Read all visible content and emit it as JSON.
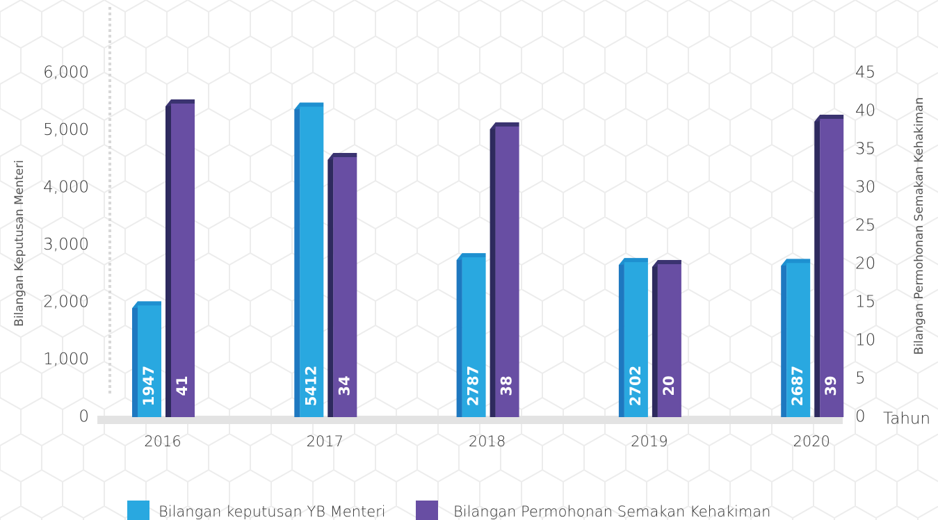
{
  "chart_data": {
    "type": "bar",
    "categories": [
      "2016",
      "2017",
      "2018",
      "2019",
      "2020"
    ],
    "series": [
      {
        "name": "Bilangan keputusan YB Menteri",
        "color": "#29a8e0",
        "values": [
          1947,
          5412,
          2787,
          2702,
          2687
        ]
      },
      {
        "name": "Bilangan Permohonan Semakan Kehakiman",
        "color": "#684ea3",
        "axis": "y2",
        "values": [
          41,
          34,
          38,
          20,
          39
        ]
      }
    ],
    "ylabel": "Bilangan Keputusan Menteri",
    "y2label": "Bilangan Permohonan Semakan Kehakiman",
    "xlabel": "Tahun",
    "ylim": [
      0,
      6000
    ],
    "yticks": [
      0,
      {
        "value": 1000,
        "label": "1,000"
      },
      {
        "value": 2000,
        "label": "2,000"
      },
      {
        "value": 3000,
        "label": "3,000"
      },
      {
        "value": 4000,
        "label": "4,000"
      },
      {
        "value": 5000,
        "label": "5,000"
      },
      {
        "value": 6000,
        "label": "6,000"
      }
    ],
    "y2lim": [
      0,
      45
    ],
    "y2ticks": [
      0,
      5,
      10,
      15,
      20,
      25,
      30,
      35,
      40,
      45
    ]
  }
}
